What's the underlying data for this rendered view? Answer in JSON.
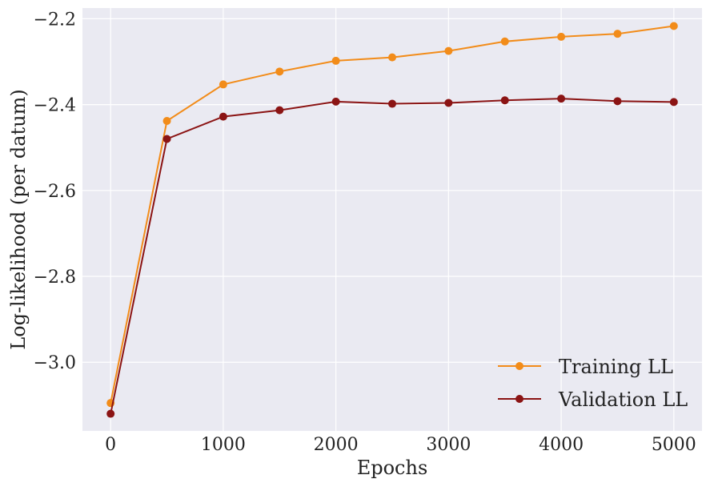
{
  "chart_data": {
    "type": "line",
    "title": "",
    "xlabel": "Epochs",
    "ylabel": "Log-likelihood (per datum)",
    "xlim": [
      -250,
      5250
    ],
    "ylim": [
      -3.16,
      -2.175
    ],
    "grid": true,
    "legend_position": "bottom-right",
    "x_ticks": [
      0,
      1000,
      2000,
      3000,
      4000,
      5000
    ],
    "x_tick_labels": [
      "0",
      "1000",
      "2000",
      "3000",
      "4000",
      "5000"
    ],
    "y_ticks": [
      -3.0,
      -2.8,
      -2.6,
      -2.4,
      -2.2
    ],
    "y_tick_labels": [
      "−3.0",
      "−2.8",
      "−2.6",
      "−2.4",
      "−2.2"
    ],
    "x": [
      0,
      500,
      1000,
      1500,
      2000,
      2500,
      3000,
      3500,
      4000,
      4500,
      5000
    ],
    "series": [
      {
        "name": "Training LL",
        "color": "#f28c1a",
        "values": [
          -3.095,
          -2.438,
          -2.353,
          -2.323,
          -2.298,
          -2.29,
          -2.275,
          -2.253,
          -2.242,
          -2.235,
          -2.217
        ]
      },
      {
        "name": "Validation LL",
        "color": "#8b1414",
        "values": [
          -3.12,
          -2.48,
          -2.428,
          -2.413,
          -2.393,
          -2.398,
          -2.396,
          -2.39,
          -2.386,
          -2.392,
          -2.394
        ]
      }
    ]
  }
}
